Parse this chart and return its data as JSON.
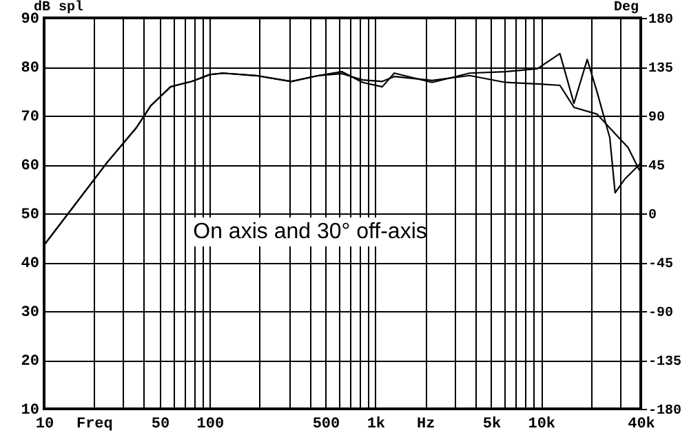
{
  "chart_data": {
    "type": "line",
    "ylabel": "dB spl",
    "y2label": "Deg",
    "annotations": [
      "On axis and 30° off-axis"
    ],
    "log": "x",
    "grid": true,
    "line_style": "solid",
    "marker": "none",
    "xlim": [
      10,
      40000
    ],
    "ylim": [
      10,
      90
    ],
    "y2lim": [
      -180,
      180
    ],
    "xticks": [
      10,
      {
        "value": 20,
        "label": "Freq"
      },
      {
        "value": 30,
        "label": null
      },
      {
        "value": 40,
        "label": null
      },
      50,
      {
        "value": 60,
        "label": null
      },
      {
        "value": 70,
        "label": null
      },
      {
        "value": 80,
        "label": null
      },
      {
        "value": 90,
        "label": null
      },
      100,
      {
        "value": 200,
        "label": null
      },
      {
        "value": 300,
        "label": null
      },
      {
        "value": 400,
        "label": null
      },
      500,
      {
        "value": 600,
        "label": null
      },
      {
        "value": 700,
        "label": null
      },
      {
        "value": 800,
        "label": null
      },
      {
        "value": 900,
        "label": null
      },
      {
        "value": 1000,
        "label": "1k"
      },
      {
        "value": 2000,
        "label": "Hz"
      },
      {
        "value": 3000,
        "label": null
      },
      {
        "value": 4000,
        "label": null
      },
      {
        "value": 5000,
        "label": "5k"
      },
      {
        "value": 6000,
        "label": null
      },
      {
        "value": 7000,
        "label": null
      },
      {
        "value": 8000,
        "label": null
      },
      {
        "value": 9000,
        "label": null
      },
      {
        "value": 10000,
        "label": "10k"
      },
      {
        "value": 20000,
        "label": null
      },
      {
        "value": 30000,
        "label": null
      },
      {
        "value": 40000,
        "label": "40k"
      }
    ],
    "yticks": [
      10,
      20,
      30,
      40,
      50,
      60,
      70,
      80,
      90
    ],
    "y2ticks": [
      -180,
      -135,
      -90,
      -45,
      0,
      45,
      90,
      135,
      180
    ],
    "series": [
      {
        "color": "#000000",
        "x": [
          10,
          24,
          36,
          44,
          58,
          78,
          100,
          120,
          190,
          310,
          454,
          627,
          837,
          1100,
          1300,
          2200,
          3700,
          6100,
          9500,
          13000,
          15800,
          19000,
          21800,
          26000,
          28000,
          32000,
          39000,
          40000
        ],
        "values": [
          43.5,
          60.4,
          67.5,
          72.0,
          75.9,
          77.0,
          78.4,
          78.7,
          78.2,
          77.0,
          78.2,
          79.0,
          76.8,
          75.9,
          78.7,
          76.8,
          78.7,
          79.0,
          79.6,
          82.7,
          72.5,
          81.5,
          74.8,
          65.5,
          54.2,
          57.0,
          59.9,
          60.5
        ]
      },
      {
        "color": "#000000",
        "x": [
          10,
          24,
          36,
          44,
          58,
          78,
          100,
          120,
          190,
          310,
          454,
          627,
          837,
          1100,
          1300,
          2200,
          3700,
          6100,
          9500,
          13000,
          15800,
          21800,
          28000,
          33500,
          39000,
          40000
        ],
        "values": [
          43.5,
          60.4,
          67.5,
          72.0,
          75.9,
          77.0,
          78.4,
          78.7,
          78.2,
          77.0,
          78.2,
          78.6,
          77.3,
          77.0,
          78.0,
          77.2,
          78.2,
          76.8,
          76.5,
          76.2,
          71.7,
          70.3,
          66.3,
          63.5,
          59.0,
          58.5
        ]
      }
    ]
  }
}
